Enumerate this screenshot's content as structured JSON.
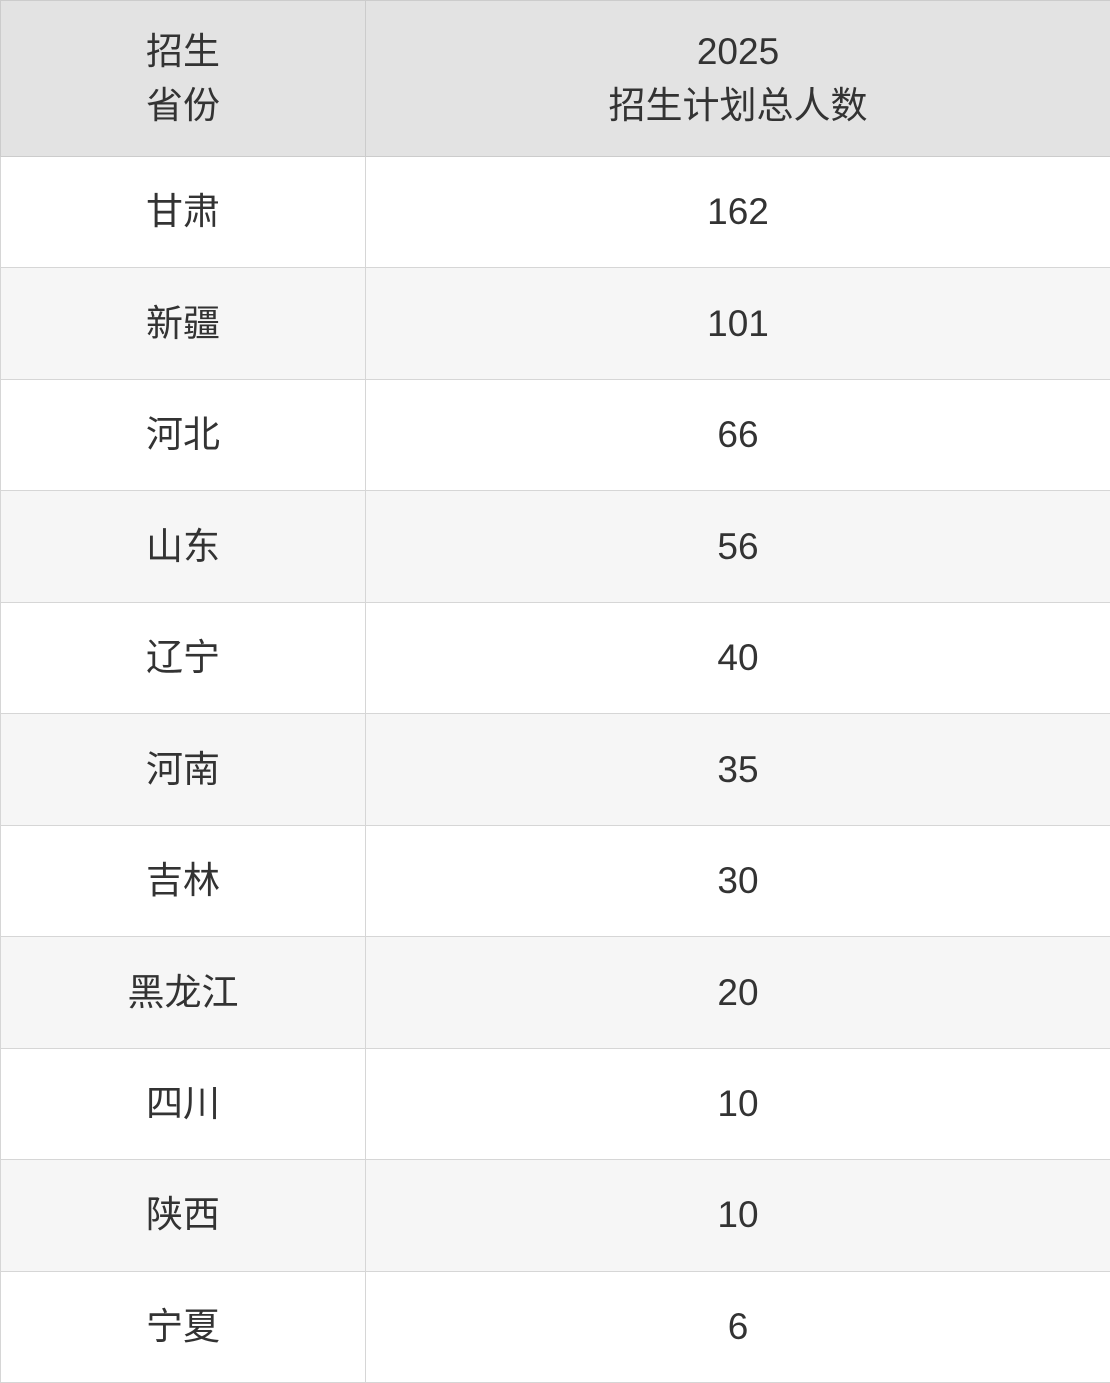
{
  "table": {
    "header": {
      "col_province": {
        "line1": "招生",
        "line2": "省份"
      },
      "col_plan": {
        "line1": "2025",
        "line2": "招生计划总人数"
      }
    },
    "rows": [
      {
        "province": "甘肃",
        "count": "162"
      },
      {
        "province": "新疆",
        "count": "101"
      },
      {
        "province": "河北",
        "count": "66"
      },
      {
        "province": "山东",
        "count": "56"
      },
      {
        "province": "辽宁",
        "count": "40"
      },
      {
        "province": "河南",
        "count": "35"
      },
      {
        "province": "吉林",
        "count": "30"
      },
      {
        "province": "黑龙江",
        "count": "20"
      },
      {
        "province": "四川",
        "count": "10"
      },
      {
        "province": "陕西",
        "count": "10"
      },
      {
        "province": "宁夏",
        "count": "6"
      }
    ]
  },
  "colors": {
    "header_bg": "#e3e3e3",
    "zebra_row_bg": "#f6f6f6",
    "row_bg": "#ffffff",
    "border": "#d6d6d6",
    "text": "#333333"
  },
  "chart_data": {
    "type": "table",
    "columns": [
      "招生省份",
      "2025招生计划总人数"
    ],
    "rows": [
      [
        "甘肃",
        162
      ],
      [
        "新疆",
        101
      ],
      [
        "河北",
        66
      ],
      [
        "山东",
        56
      ],
      [
        "辽宁",
        40
      ],
      [
        "河南",
        35
      ],
      [
        "吉林",
        30
      ],
      [
        "黑龙江",
        20
      ],
      [
        "四川",
        10
      ],
      [
        "陕西",
        10
      ],
      [
        "宁夏",
        6
      ]
    ],
    "title": "",
    "legend": "none",
    "grid": "on"
  }
}
